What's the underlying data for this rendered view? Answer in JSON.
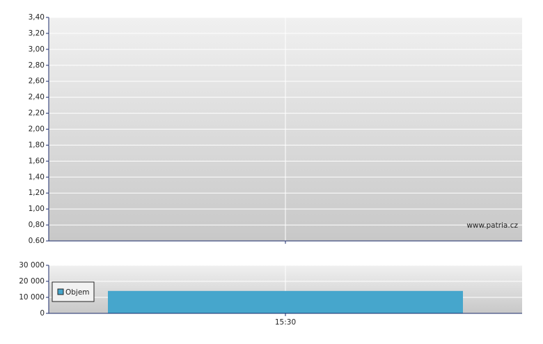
{
  "chart_data": [
    {
      "type": "line",
      "annotation": "www.patria.cz",
      "categories": [
        null
      ],
      "ylim": [
        0.6,
        3.4
      ],
      "yticks": [
        {
          "value": 0.6,
          "label": "0.60"
        },
        {
          "value": 0.8,
          "label": "0,80"
        },
        {
          "value": 1.0,
          "label": "1,00"
        },
        {
          "value": 1.2,
          "label": "1,20"
        },
        {
          "value": 1.4,
          "label": "1,40"
        },
        {
          "value": 1.6,
          "label": "1,60"
        },
        {
          "value": 1.8,
          "label": "1,80"
        },
        {
          "value": 2.0,
          "label": "2,00"
        },
        {
          "value": 2.2,
          "label": "2,20"
        },
        {
          "value": 2.4,
          "label": "2,40"
        },
        {
          "value": 2.6,
          "label": "2,60"
        },
        {
          "value": 2.8,
          "label": "2,80"
        },
        {
          "value": 3.0,
          "label": "3,00"
        },
        {
          "value": 3.2,
          "label": "3,20"
        },
        {
          "value": 3.4,
          "label": "3,40"
        }
      ],
      "grid": true
    },
    {
      "type": "bar",
      "categories": [
        "15:30"
      ],
      "series": [
        {
          "name": "Objem",
          "color": "#46a6cc",
          "values": [
            14000
          ]
        }
      ],
      "ylim": [
        0,
        30000
      ],
      "yticks": [
        0,
        {
          "value": 10000,
          "label": "10 000"
        },
        {
          "value": 20000,
          "label": "20 000"
        },
        {
          "value": 30000,
          "label": "30 000"
        }
      ],
      "grid": true,
      "legend": "left"
    }
  ]
}
